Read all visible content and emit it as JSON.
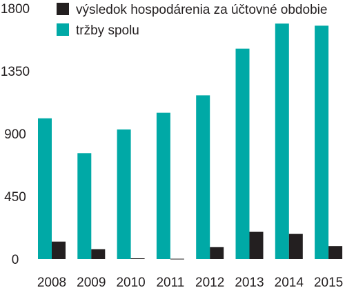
{
  "chart_data": {
    "type": "bar",
    "categories": [
      "2008",
      "2009",
      "2010",
      "2011",
      "2012",
      "2013",
      "2014",
      "2015"
    ],
    "series": [
      {
        "name": "výsledok hospodárenia za účtovné obdobie",
        "color": "#231f20",
        "values": [
          125,
          70,
          5,
          2,
          85,
          195,
          180,
          93
        ]
      },
      {
        "name": "tržby spolu",
        "color": "#00a9a6",
        "values": [
          1010,
          760,
          930,
          1050,
          1175,
          1510,
          1690,
          1675
        ]
      }
    ],
    "y_ticks": [
      "0",
      "450",
      "900",
      "1350",
      "1800"
    ],
    "ylim": [
      0,
      1800
    ],
    "legend_position": "top",
    "grid": false
  }
}
